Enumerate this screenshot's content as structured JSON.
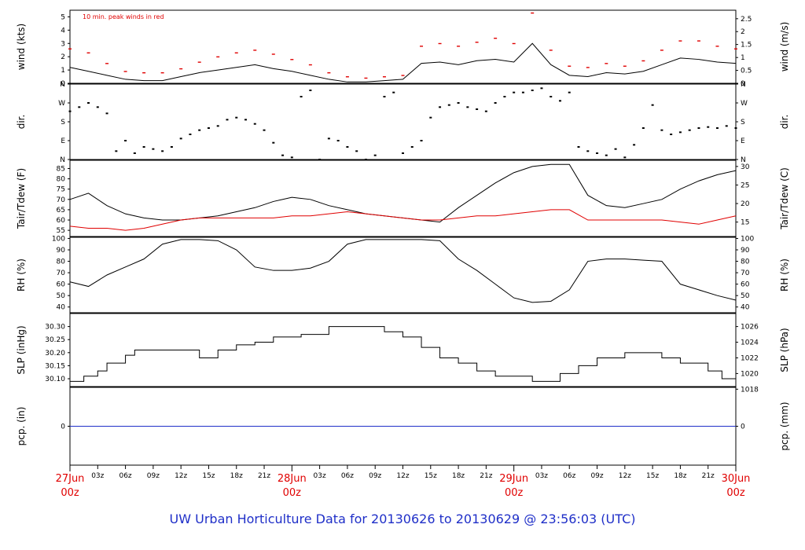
{
  "chart_data": {
    "type": "line",
    "title": "UW Urban Horticulture Data for 20130626  to  20130629 @ 23:56:03  (UTC)",
    "time_axis": {
      "start": "27Jun 00z",
      "end": "30Jun 00z",
      "day_labels": [
        {
          "day": "27Jun",
          "hour": "00z",
          "t": 0
        },
        {
          "day": "28Jun",
          "hour": "00z",
          "t": 24
        },
        {
          "day": "29Jun",
          "hour": "00z",
          "t": 48
        },
        {
          "day": "30Jun",
          "hour": "00z",
          "t": 72
        }
      ],
      "hour_ticks": [
        "03z",
        "06z",
        "09z",
        "12z",
        "15z",
        "18z",
        "21z",
        "03z",
        "06z",
        "09z",
        "12z",
        "15z",
        "18z",
        "21z",
        "03z",
        "06z",
        "09z",
        "12z",
        "15z",
        "18z",
        "21z"
      ],
      "hour_tick_t": [
        3,
        6,
        9,
        12,
        15,
        18,
        21,
        27,
        30,
        33,
        36,
        39,
        42,
        45,
        51,
        54,
        57,
        60,
        63,
        66,
        69
      ],
      "range_hours": [
        0,
        72
      ]
    },
    "panels": [
      {
        "id": "wind",
        "ylabel_left": "wind (kts)",
        "ylabel_right": "wind (m/s)",
        "annotation": "10 min. peak winds in red",
        "ylim": [
          0,
          5.5
        ],
        "left_ticks": [
          "0",
          "1",
          "2",
          "3",
          "4",
          "5"
        ],
        "left_tick_values": [
          0,
          1,
          2,
          3,
          4,
          5
        ],
        "right_ticks": [
          "0",
          "0.5",
          "1",
          "1.5",
          "2",
          "2.5"
        ],
        "right_tick_values_kts": [
          0,
          0.97,
          1.94,
          2.92,
          3.89,
          4.86
        ],
        "series": [
          {
            "name": "wind",
            "color": "#000000",
            "t": [
              0,
              2,
              4,
              6,
              8,
              10,
              12,
              14,
              16,
              18,
              20,
              22,
              24,
              26,
              28,
              30,
              32,
              34,
              36,
              38,
              40,
              42,
              44,
              46,
              48,
              50,
              52,
              54,
              56,
              58,
              60,
              62,
              64,
              66,
              68,
              70,
              72
            ],
            "values": [
              1.2,
              0.9,
              0.6,
              0.3,
              0.2,
              0.2,
              0.5,
              0.8,
              1.0,
              1.2,
              1.4,
              1.1,
              0.9,
              0.6,
              0.3,
              0.1,
              0.1,
              0.2,
              0.3,
              1.5,
              1.6,
              1.4,
              1.7,
              1.8,
              1.6,
              3.0,
              1.4,
              0.6,
              0.5,
              0.8,
              0.7,
              0.9,
              1.4,
              1.9,
              1.8,
              1.6,
              1.5
            ]
          },
          {
            "name": "10 min. peak",
            "color": "#e00000",
            "t": [
              0,
              2,
              4,
              6,
              8,
              10,
              12,
              14,
              16,
              18,
              20,
              22,
              24,
              26,
              28,
              30,
              32,
              34,
              36,
              38,
              40,
              42,
              44,
              46,
              48,
              50,
              52,
              54,
              56,
              58,
              60,
              62,
              64,
              66,
              68,
              70,
              72
            ],
            "values": [
              2.6,
              2.3,
              1.5,
              0.9,
              0.8,
              0.8,
              1.1,
              1.6,
              2.0,
              2.3,
              2.5,
              2.2,
              1.8,
              1.4,
              0.8,
              0.5,
              0.4,
              0.5,
              0.6,
              2.8,
              3.0,
              2.8,
              3.1,
              3.4,
              3.0,
              5.3,
              2.5,
              1.3,
              1.2,
              1.5,
              1.3,
              1.7,
              2.5,
              3.2,
              3.2,
              2.8,
              2.6
            ]
          }
        ]
      },
      {
        "id": "dir",
        "ylabel_left": "dir.",
        "ylabel_right": "dir.",
        "ylim": [
          0,
          360
        ],
        "left_ticks": [
          "N",
          "E",
          "S",
          "W",
          "N"
        ],
        "right_ticks": [
          "N",
          "E",
          "S",
          "W",
          "N"
        ],
        "tick_values": [
          0,
          90,
          180,
          270,
          360
        ],
        "series": [
          {
            "name": "direction",
            "color": "#000000",
            "t": [
              0,
              1,
              2,
              3,
              4,
              5,
              6,
              7,
              8,
              9,
              10,
              11,
              12,
              13,
              14,
              15,
              16,
              17,
              18,
              19,
              20,
              21,
              22,
              23,
              24,
              25,
              26,
              27,
              28,
              29,
              30,
              31,
              32,
              33,
              34,
              35,
              36,
              37,
              38,
              39,
              40,
              41,
              42,
              43,
              44,
              45,
              46,
              47,
              48,
              49,
              50,
              51,
              52,
              53,
              54,
              55,
              56,
              57,
              58,
              59,
              60,
              61,
              62,
              63,
              64,
              65,
              66,
              67,
              68,
              69,
              70,
              71,
              72
            ],
            "values": [
              230,
              250,
              270,
              250,
              220,
              40,
              90,
              30,
              60,
              50,
              40,
              60,
              100,
              120,
              140,
              150,
              160,
              190,
              200,
              190,
              170,
              140,
              80,
              20,
              10,
              300,
              330,
              0,
              100,
              90,
              60,
              40,
              0,
              20,
              300,
              320,
              30,
              60,
              90,
              200,
              250,
              260,
              270,
              250,
              240,
              230,
              270,
              300,
              320,
              320,
              330,
              340,
              300,
              280,
              320,
              60,
              40,
              30,
              20,
              50,
              10,
              70,
              150,
              260,
              140,
              120,
              130,
              140,
              150,
              155,
              150,
              160,
              150
            ]
          }
        ]
      },
      {
        "id": "temp",
        "ylabel_left": "Tair/Tdew (F)",
        "ylabel_right": "Tair/Tdew (C)",
        "ylim": [
          52,
          89
        ],
        "left_ticks": [
          "55",
          "60",
          "65",
          "70",
          "75",
          "80",
          "85"
        ],
        "left_tick_values": [
          55,
          60,
          65,
          70,
          75,
          80,
          85
        ],
        "right_ticks": [
          "15",
          "20",
          "25",
          "30"
        ],
        "right_tick_values_f": [
          59,
          68,
          77,
          86
        ],
        "series": [
          {
            "name": "Tair",
            "color": "#000000",
            "t": [
              0,
              2,
              4,
              6,
              8,
              10,
              12,
              14,
              16,
              18,
              20,
              22,
              24,
              26,
              28,
              30,
              32,
              34,
              36,
              38,
              40,
              42,
              44,
              46,
              48,
              50,
              52,
              54,
              56,
              58,
              60,
              62,
              64,
              66,
              68,
              70,
              72
            ],
            "values": [
              70,
              73,
              67,
              63,
              61,
              60,
              60,
              61,
              62,
              64,
              66,
              69,
              71,
              70,
              67,
              65,
              63,
              62,
              61,
              60,
              59,
              66,
              72,
              78,
              83,
              86,
              87,
              87,
              72,
              67,
              66,
              68,
              70,
              75,
              79,
              82,
              84
            ]
          },
          {
            "name": "Tdew",
            "color": "#e00000",
            "t": [
              0,
              2,
              4,
              6,
              8,
              10,
              12,
              14,
              16,
              18,
              20,
              22,
              24,
              26,
              28,
              30,
              32,
              34,
              36,
              38,
              40,
              42,
              44,
              46,
              48,
              50,
              52,
              54,
              56,
              58,
              60,
              62,
              64,
              66,
              68,
              70,
              72
            ],
            "values": [
              57,
              56,
              56,
              55,
              56,
              58,
              60,
              61,
              61,
              61,
              61,
              61,
              62,
              62,
              63,
              64,
              63,
              62,
              61,
              60,
              60,
              61,
              62,
              62,
              63,
              64,
              65,
              65,
              60,
              60,
              60,
              60,
              60,
              59,
              58,
              60,
              62
            ]
          }
        ]
      },
      {
        "id": "rh",
        "ylabel_left": "RH (%)",
        "ylabel_right": "RH (%)",
        "ylim": [
          35,
          101
        ],
        "ticks": [
          "40",
          "50",
          "60",
          "70",
          "80",
          "90",
          "100"
        ],
        "tick_values": [
          40,
          50,
          60,
          70,
          80,
          90,
          100
        ],
        "series": [
          {
            "name": "RH",
            "color": "#000000",
            "t": [
              0,
              2,
              4,
              6,
              8,
              10,
              12,
              14,
              16,
              18,
              20,
              22,
              24,
              26,
              28,
              30,
              32,
              34,
              36,
              38,
              40,
              42,
              44,
              46,
              48,
              50,
              52,
              54,
              56,
              58,
              60,
              62,
              64,
              66,
              68,
              70,
              72
            ],
            "values": [
              62,
              58,
              68,
              75,
              82,
              95,
              99,
              99,
              98,
              90,
              75,
              72,
              72,
              74,
              80,
              95,
              99,
              99,
              99,
              99,
              98,
              82,
              72,
              60,
              48,
              44,
              45,
              55,
              80,
              82,
              82,
              81,
              80,
              60,
              55,
              50,
              46
            ]
          }
        ]
      },
      {
        "id": "slp",
        "ylabel_left": "SLP (inHg)",
        "ylabel_right": "SLP (hPa)",
        "ylim": [
          30.07,
          30.35
        ],
        "left_ticks": [
          "30.10",
          "30.15",
          "30.20",
          "30.25",
          "30.30"
        ],
        "left_tick_values": [
          30.1,
          30.15,
          30.2,
          30.25,
          30.3
        ],
        "right_ticks": [
          "1018",
          "1020",
          "1022",
          "1024",
          "1026"
        ],
        "right_tick_values_inhg": [
          30.06,
          30.12,
          30.18,
          30.24,
          30.3
        ],
        "series": [
          {
            "name": "SLP",
            "color": "#000000",
            "step": true,
            "t": [
              0,
              1.5,
              3,
              4,
              6,
              7,
              14,
              16,
              18,
              20,
              22,
              25,
              28,
              32,
              34,
              36,
              38,
              40,
              42,
              44,
              46,
              50,
              51.5,
              53,
              55,
              57,
              60,
              62,
              64,
              66,
              69,
              70.5,
              72
            ],
            "values": [
              30.09,
              30.11,
              30.13,
              30.16,
              30.19,
              30.21,
              30.18,
              30.21,
              30.23,
              30.24,
              30.26,
              30.27,
              30.3,
              30.3,
              30.28,
              30.26,
              30.22,
              30.18,
              30.16,
              30.13,
              30.11,
              30.09,
              30.09,
              30.12,
              30.15,
              30.18,
              30.2,
              30.2,
              30.18,
              30.16,
              30.13,
              30.1,
              30.08
            ]
          }
        ]
      },
      {
        "id": "pcp",
        "ylabel_left": "pcp. (in)",
        "ylabel_right": "pcp. (mm)",
        "ylim": [
          -1,
          1
        ],
        "left_ticks": [
          "0"
        ],
        "right_ticks": [
          "0"
        ],
        "series": [
          {
            "name": "precip",
            "color": "#1f2fc8",
            "t": [
              0,
              72
            ],
            "values": [
              0,
              0
            ]
          }
        ]
      }
    ]
  }
}
